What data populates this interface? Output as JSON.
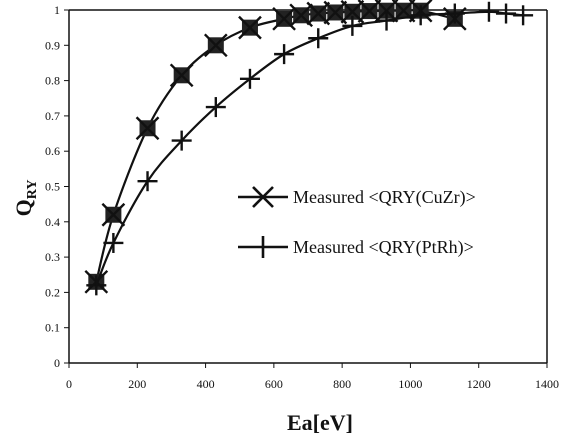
{
  "chart_data": {
    "type": "line",
    "title": "",
    "xlabel": "Ea[eV]",
    "ylabel": {
      "main": "Q",
      "sub": "RY"
    },
    "xlim": [
      0,
      1400
    ],
    "ylim": [
      0,
      1
    ],
    "xticks": [
      "0",
      "200",
      "400",
      "600",
      "800",
      "1000",
      "1200",
      "1400"
    ],
    "yticks": [
      "0",
      "0.1",
      "0.2",
      "0.3",
      "0.4",
      "0.5",
      "0.6",
      "0.7",
      "0.8",
      "0.9",
      "1"
    ],
    "grid": false,
    "legend_position": "right",
    "series": [
      {
        "name": "Measured <QRY(CuZr)>",
        "marker": "x-square",
        "color": "#111111",
        "x": [
          80,
          130,
          230,
          330,
          430,
          530,
          630,
          680,
          730,
          780,
          830,
          880,
          930,
          980,
          1030,
          1130
        ],
        "y": [
          0.23,
          0.42,
          0.665,
          0.815,
          0.9,
          0.95,
          0.975,
          0.985,
          0.99,
          0.993,
          0.995,
          0.997,
          0.998,
          0.998,
          0.998,
          0.975
        ]
      },
      {
        "name": "Measured <QRY(PtRh)>",
        "marker": "plus",
        "color": "#111111",
        "x": [
          80,
          130,
          230,
          330,
          430,
          530,
          630,
          730,
          830,
          930,
          1030,
          1130,
          1230,
          1280,
          1330
        ],
        "y": [
          0.22,
          0.34,
          0.515,
          0.63,
          0.725,
          0.805,
          0.875,
          0.92,
          0.955,
          0.97,
          0.985,
          0.99,
          0.995,
          0.99,
          0.985
        ]
      }
    ]
  }
}
